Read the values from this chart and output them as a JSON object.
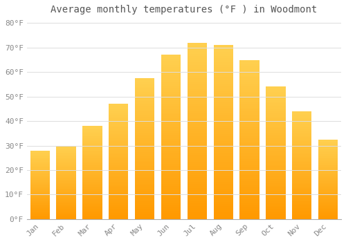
{
  "title": "Average monthly temperatures (°F ) in Woodmont",
  "months": [
    "Jan",
    "Feb",
    "Mar",
    "Apr",
    "May",
    "Jun",
    "Jul",
    "Aug",
    "Sep",
    "Oct",
    "Nov",
    "Dec"
  ],
  "values": [
    28,
    30,
    38,
    47,
    57.5,
    67,
    72,
    71,
    65,
    54,
    44,
    32.5
  ],
  "bar_color_left": "#FFC125",
  "bar_color_right": "#FFA500",
  "bar_color_bottom": "#FF9900",
  "bar_color_top": "#FFD040",
  "ylim": [
    0,
    82
  ],
  "yticks": [
    0,
    10,
    20,
    30,
    40,
    50,
    60,
    70,
    80
  ],
  "ytick_labels": [
    "0°F",
    "10°F",
    "20°F",
    "30°F",
    "40°F",
    "50°F",
    "60°F",
    "70°F",
    "80°F"
  ],
  "background_color": "#FFFFFF",
  "grid_color": "#DDDDDD",
  "title_fontsize": 10,
  "tick_fontsize": 8,
  "font_family": "monospace",
  "title_color": "#555555",
  "tick_color": "#888888"
}
